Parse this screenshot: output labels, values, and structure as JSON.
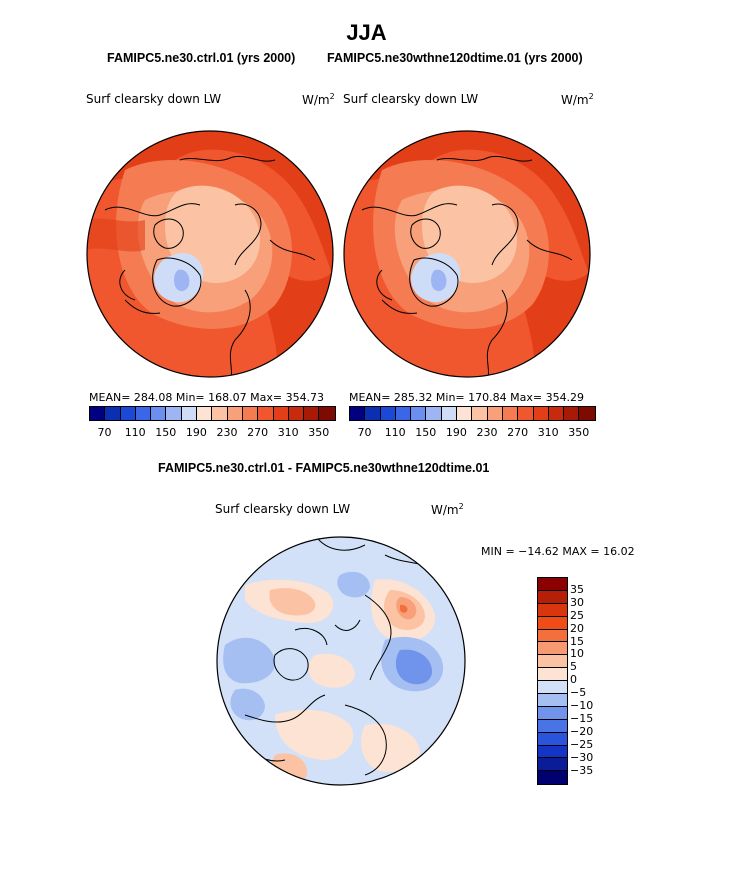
{
  "figure": {
    "title": "JJA",
    "header_left": "FAMIPC5.ne30.ctrl.01 (yrs 2000)",
    "header_right": "FAMIPC5.ne30wthne120dtime.01 (yrs 2000)",
    "diff_title": "FAMIPC5.ne30.ctrl.01 - FAMIPC5.ne30wthne120dtime.01"
  },
  "panels": {
    "left": {
      "variable": "Surf clearsky down LW",
      "units_base": "W/m",
      "units_exp": "2",
      "stats": "MEAN= 284.08   Min= 168.07   Max= 354.73"
    },
    "right": {
      "variable": "Surf clearsky down LW",
      "units_base": "W/m",
      "units_exp": "2",
      "stats": "MEAN= 285.32   Min= 170.84   Max= 354.29"
    },
    "diff": {
      "variable": "Surf clearsky down LW",
      "units_base": "W/m",
      "units_exp": "2",
      "stats": "MIN = −14.62  MAX =   16.02"
    }
  },
  "colorbars": {
    "abs": {
      "colors": [
        "#000080",
        "#0a2fb0",
        "#1c48d6",
        "#3a67e8",
        "#6a8fee",
        "#9db6f3",
        "#cfdcf8",
        "#fde3d3",
        "#fbc3a3",
        "#f7a07a",
        "#f47b52",
        "#f0572f",
        "#e23e17",
        "#c72a0c",
        "#a81a06",
        "#7e0b02"
      ],
      "labels": [
        "70",
        "110",
        "150",
        "190",
        "230",
        "270",
        "310",
        "350"
      ]
    },
    "diff": {
      "colors": [
        "#8b0000",
        "#b51e07",
        "#d9360e",
        "#ef4c1a",
        "#f36f3e",
        "#f79a72",
        "#fbc3a3",
        "#fde3d3",
        "#d2e1f8",
        "#a6bff3",
        "#7093ec",
        "#4a73e6",
        "#2b54dc",
        "#1334c4",
        "#0a1c98",
        "#000070"
      ],
      "labels": [
        "35",
        "30",
        "25",
        "20",
        "15",
        "10",
        "5",
        "0",
        "−5",
        "−10",
        "−15",
        "−20",
        "−25",
        "−30",
        "−35"
      ]
    }
  }
}
